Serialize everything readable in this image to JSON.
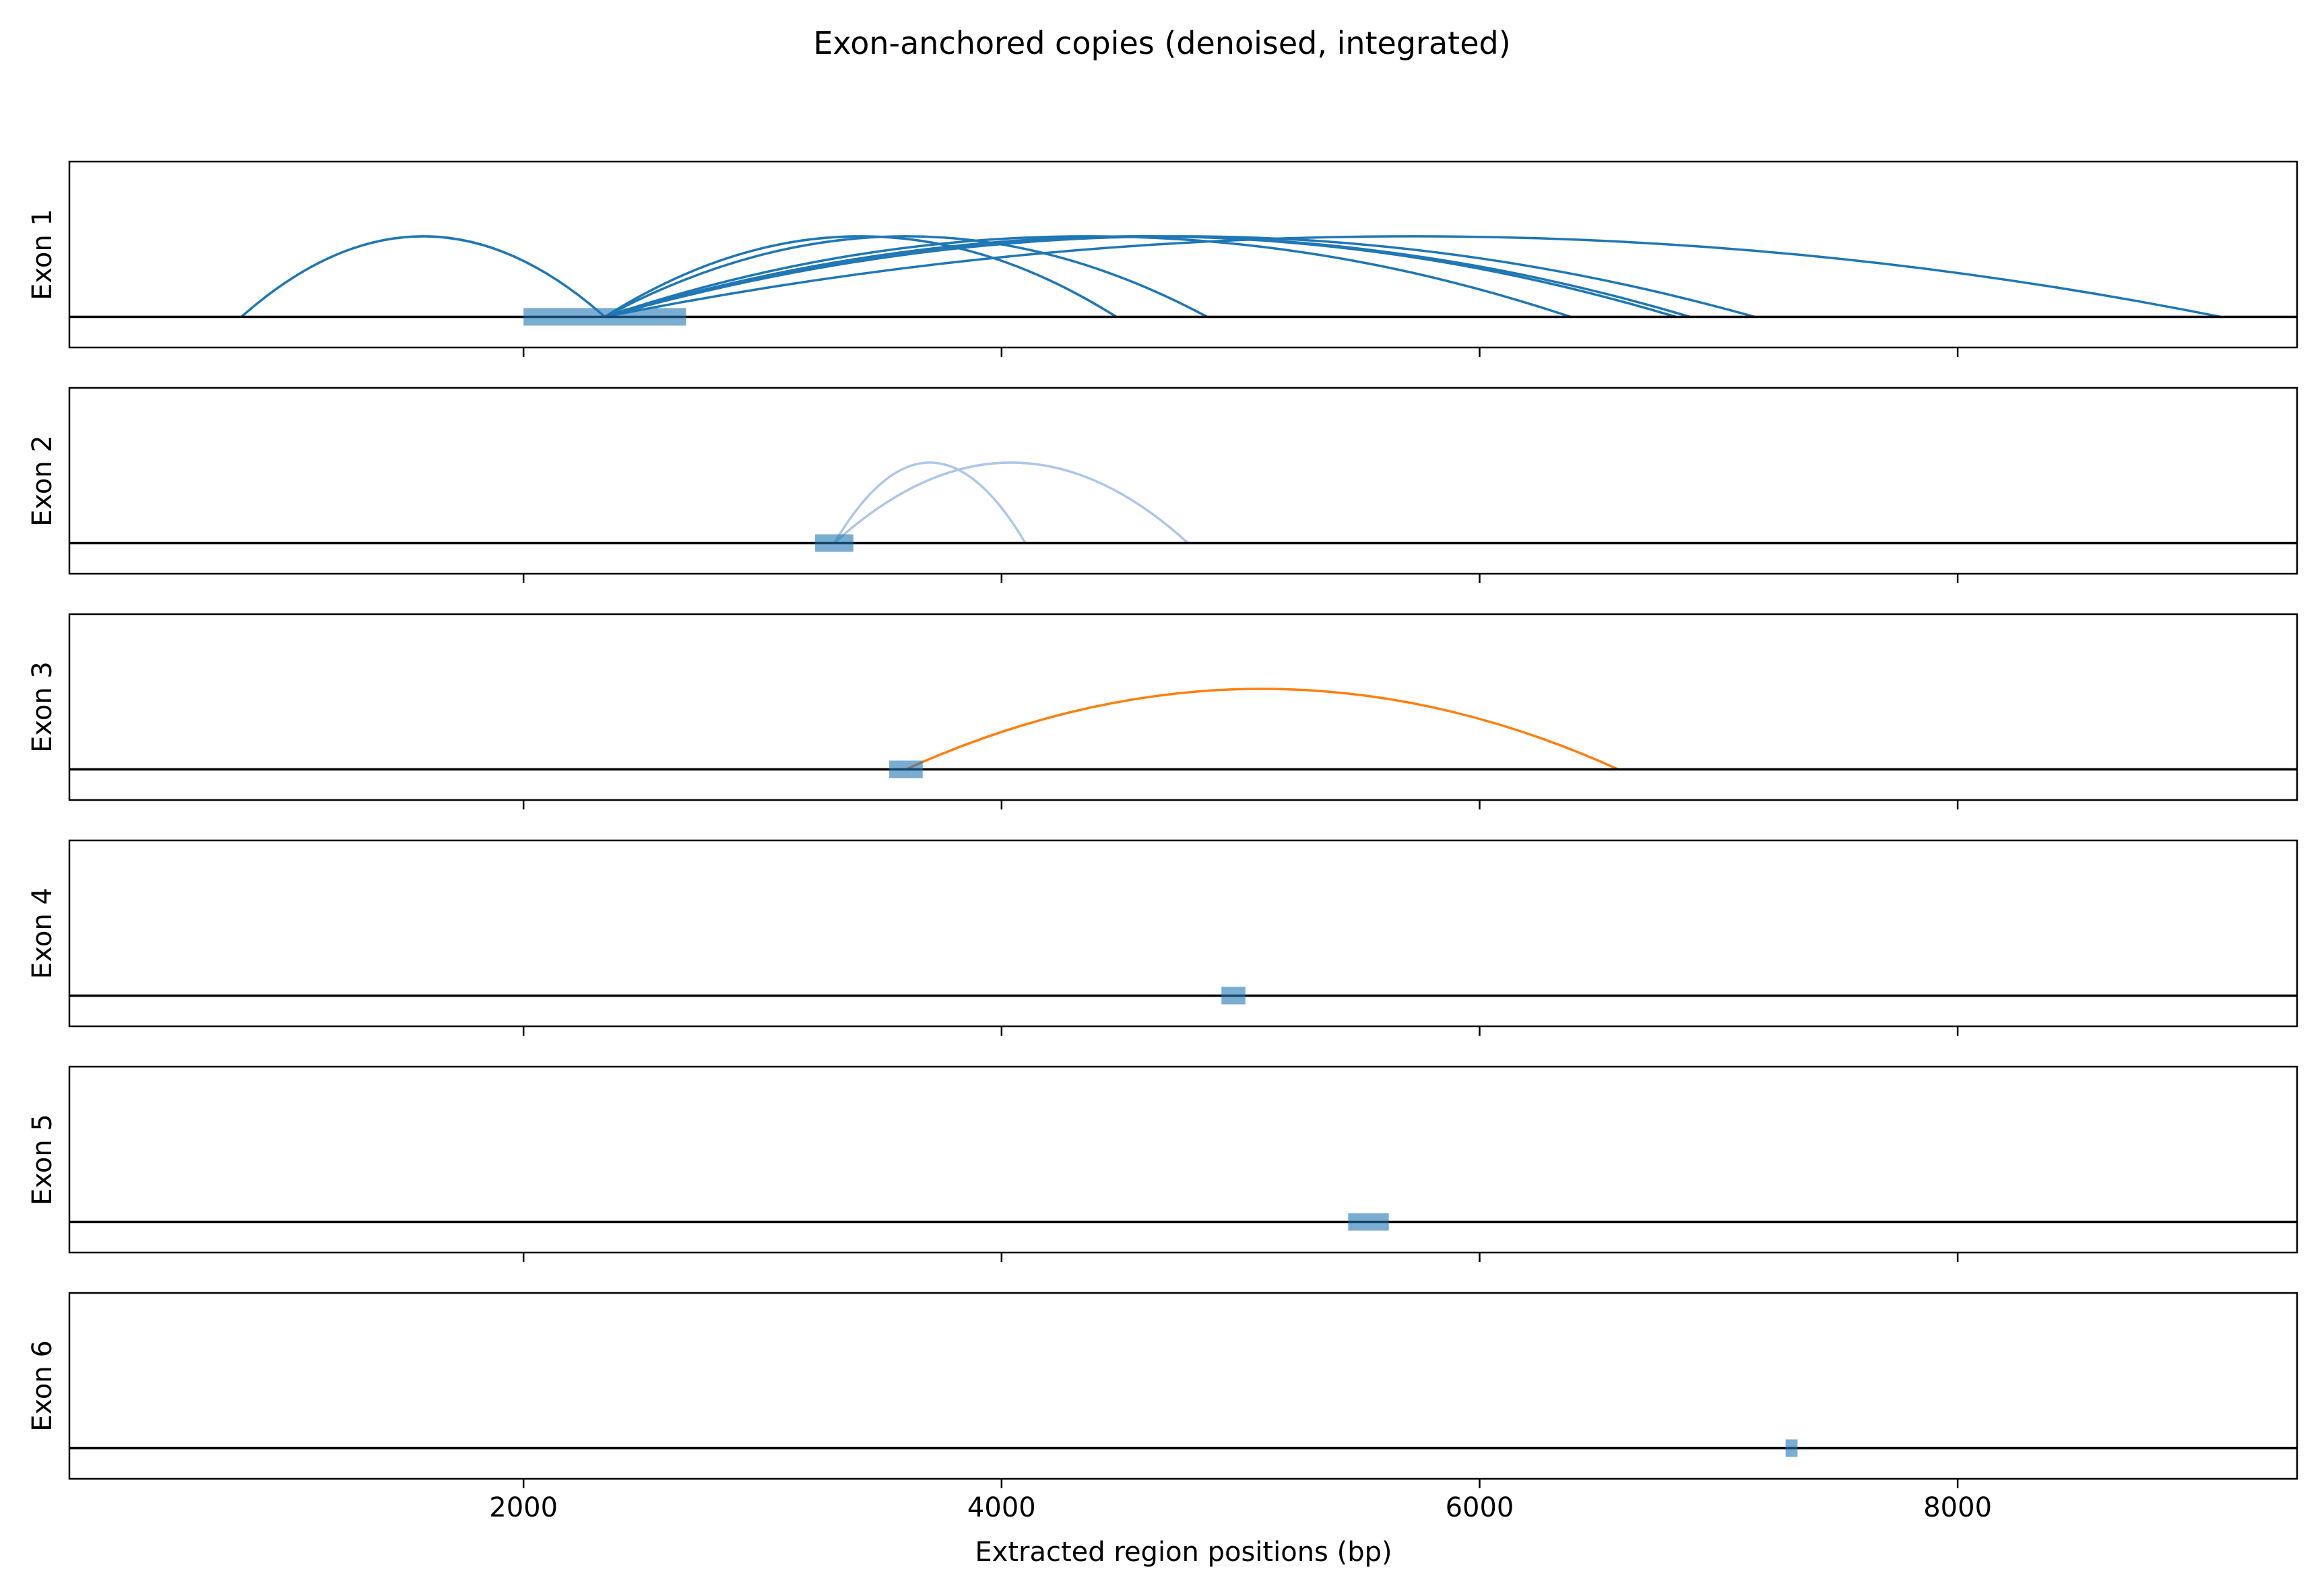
{
  "chart_data": {
    "type": "arc",
    "title": "Exon-anchored copies (denoised, integrated)",
    "xlabel": "Extracted region positions (bp)",
    "xlim": [
      100,
      9420
    ],
    "xticks": [
      2000,
      4000,
      6000,
      8000
    ],
    "xtick_labels": [
      "2000",
      "4000",
      "6000",
      "8000"
    ],
    "grid": false,
    "legend": "none",
    "colors": {
      "dark_blue": "#1f77b4",
      "light_blue": "#aec7e8",
      "orange": "#ff7f0e",
      "block": "#1f77b4",
      "baseline": "#000000"
    },
    "panels": [
      {
        "label": "Exon 1",
        "anchor": {
          "start": 2000,
          "end": 2680
        },
        "arc_color": "dark_blue",
        "arcs": [
          {
            "from": 820,
            "to": 2340
          },
          {
            "from": 2340,
            "to": 4480
          },
          {
            "from": 2340,
            "to": 4860
          },
          {
            "from": 2340,
            "to": 6380
          },
          {
            "from": 2340,
            "to": 6820
          },
          {
            "from": 2340,
            "to": 6880
          },
          {
            "from": 2340,
            "to": 7150
          },
          {
            "from": 2340,
            "to": 9100
          }
        ]
      },
      {
        "label": "Exon 2",
        "anchor": {
          "start": 3220,
          "end": 3380
        },
        "arc_color": "light_blue",
        "arcs": [
          {
            "from": 3300,
            "to": 4100
          },
          {
            "from": 3300,
            "to": 4780
          }
        ]
      },
      {
        "label": "Exon 3",
        "anchor": {
          "start": 3530,
          "end": 3670
        },
        "arc_color": "orange",
        "arcs": [
          {
            "from": 3600,
            "to": 6580
          }
        ]
      },
      {
        "label": "Exon 4",
        "anchor": {
          "start": 4920,
          "end": 5020
        },
        "arc_color": "dark_blue",
        "arcs": []
      },
      {
        "label": "Exon 5",
        "anchor": {
          "start": 5450,
          "end": 5620
        },
        "arc_color": "dark_blue",
        "arcs": []
      },
      {
        "label": "Exon 6",
        "anchor": {
          "start": 7280,
          "end": 7330
        },
        "arc_color": "dark_blue",
        "arcs": []
      }
    ]
  }
}
